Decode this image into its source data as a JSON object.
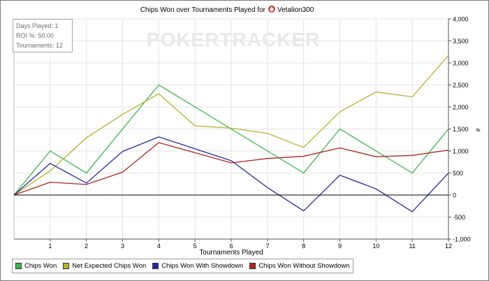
{
  "chart_data": {
    "type": "line",
    "title": "Chips Won over Tournaments Played for",
    "player": "Vetalion300",
    "xlabel": "Tournaments Played",
    "ylabel": "#",
    "watermark": "POKERTRACKER",
    "xlim": [
      0,
      12
    ],
    "ylim": [
      -1000,
      4000
    ],
    "x_ticks": [
      "1",
      "2",
      "3",
      "4",
      "5",
      "6",
      "7",
      "8",
      "9",
      "10",
      "11",
      "12"
    ],
    "y_ticks": [
      "4,000",
      "3,500",
      "3,000",
      "2,500",
      "2,000",
      "1,500",
      "1,000",
      "500",
      "0",
      "-500",
      "-1,000"
    ],
    "grid": true,
    "legend_position": "bottom-left",
    "x": [
      0,
      1,
      2,
      3,
      4,
      5,
      6,
      7,
      8,
      9,
      10,
      11,
      12
    ],
    "series": [
      {
        "name": "Chips Won",
        "color": "#39b54a",
        "values": [
          0,
          1000,
          500,
          1500,
          2500,
          2000,
          1500,
          1000,
          500,
          1500,
          1000,
          500,
          1500
        ]
      },
      {
        "name": "Net Expected Chips Won",
        "color": "#b5b232",
        "values": [
          0,
          550,
          1300,
          1830,
          2300,
          1570,
          1520,
          1400,
          1080,
          1890,
          2340,
          2230,
          3170
        ]
      },
      {
        "name": "Chips Won With Showdown",
        "color": "#2a2a9a",
        "values": [
          0,
          720,
          270,
          990,
          1320,
          1050,
          780,
          170,
          -360,
          450,
          140,
          -380,
          500
        ]
      },
      {
        "name": "Chips Won Without Showdown",
        "color": "#b12424",
        "values": [
          0,
          290,
          240,
          520,
          1190,
          960,
          730,
          830,
          880,
          1070,
          870,
          900,
          1020
        ]
      }
    ]
  },
  "stats": {
    "days_played": "Days Played: 1",
    "roi": "ROI %: 50.00",
    "tournaments": "Tournaments: 12"
  },
  "icons": {
    "player_icon": "spade-icon",
    "player_icon_color": "#d03030"
  }
}
